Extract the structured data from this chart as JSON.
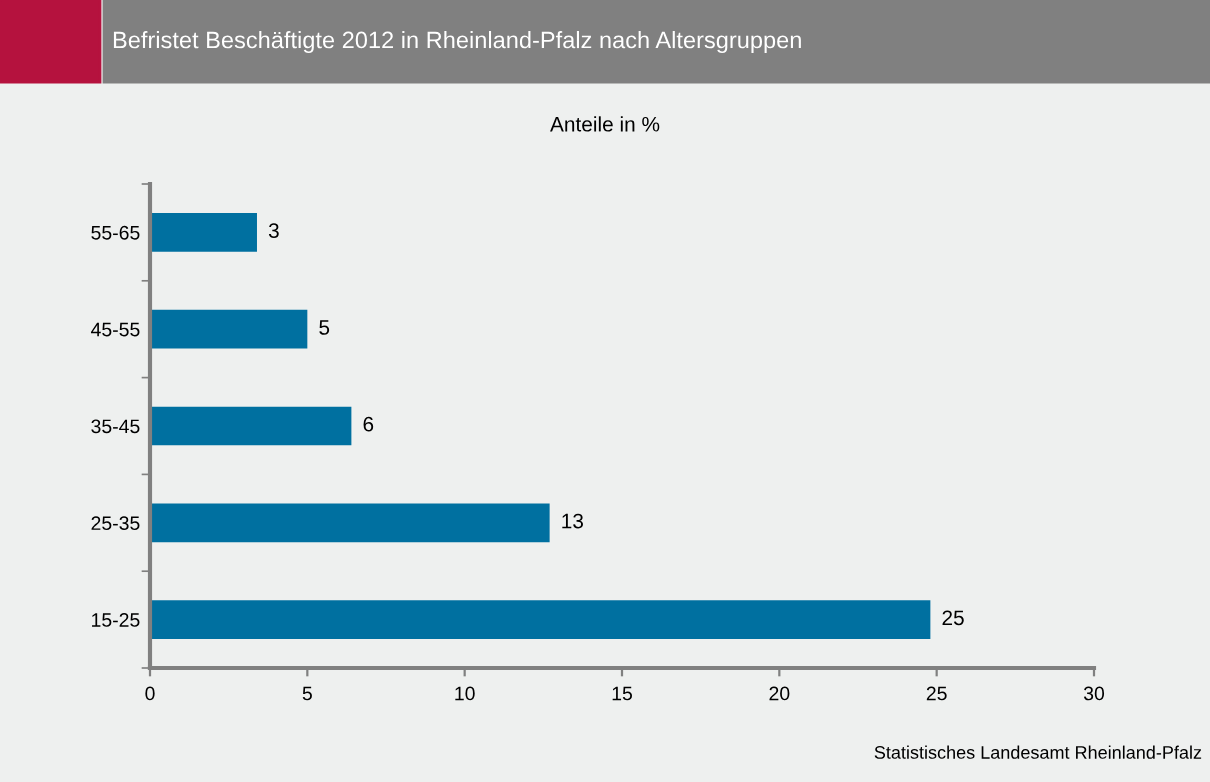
{
  "chart_data": {
    "type": "bar",
    "orientation": "horizontal",
    "title": "Befristet Beschäftigte 2012 in Rheinland-Pfalz nach Altersgruppen",
    "subtitle": "Anteile in %",
    "categories": [
      "55-65",
      "45-55",
      "35-45",
      "25-35",
      "15-25"
    ],
    "values": [
      3.4,
      5.0,
      6.4,
      12.7,
      24.8
    ],
    "value_labels": [
      "3",
      "5",
      "6",
      "13",
      "25"
    ],
    "color": "#0070a0",
    "xlim": [
      0,
      30
    ],
    "xticks": [
      0,
      5,
      10,
      15,
      20,
      25,
      30
    ],
    "grid": false,
    "legend": false,
    "annotations": [
      "Statistisches Landesamt Rheinland-Pfalz"
    ]
  }
}
